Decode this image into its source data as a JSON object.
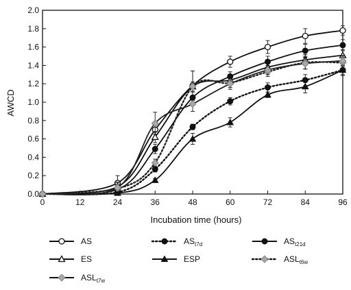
{
  "chart_data": {
    "type": "line",
    "title": "",
    "xlabel": "Incubation time (hours)",
    "ylabel": "AWCD",
    "xlim": [
      0,
      96
    ],
    "ylim": [
      0,
      2.0
    ],
    "x_ticks": [
      0,
      12,
      24,
      36,
      48,
      60,
      72,
      84,
      96
    ],
    "y_ticks": [
      "0.0",
      "0.2",
      "0.4",
      "0.6",
      "0.8",
      "1.0",
      "1.2",
      "1.4",
      "1.6",
      "1.8",
      "2.0"
    ],
    "grid": false,
    "legend_position": "bottom",
    "x": [
      0,
      24,
      36,
      48,
      60,
      72,
      84,
      96
    ],
    "series": [
      {
        "name": "AS",
        "main": "AS",
        "sub": "",
        "marker": "circle-open",
        "line": "solid",
        "values": [
          0.0,
          0.12,
          0.7,
          1.18,
          1.44,
          1.6,
          1.72,
          1.78
        ],
        "errors": [
          0,
          0.08,
          0.08,
          0.16,
          0.06,
          0.07,
          0.08,
          0.05
        ]
      },
      {
        "name": "AS_t7d",
        "main": "AS",
        "sub": "t7d",
        "marker": "circle-filled",
        "line": "dotted",
        "values": [
          0.0,
          0.02,
          0.27,
          0.73,
          1.01,
          1.16,
          1.24,
          1.35
        ],
        "errors": [
          0,
          0.02,
          0.03,
          0.03,
          0.04,
          0.05,
          0.06,
          0.05
        ]
      },
      {
        "name": "AS_t21d",
        "main": "AS",
        "sub": "t21d",
        "marker": "circle-filled",
        "line": "solid",
        "values": [
          0.0,
          0.05,
          0.49,
          1.05,
          1.28,
          1.44,
          1.56,
          1.62
        ],
        "errors": [
          0,
          0.04,
          0.05,
          0.06,
          0.05,
          0.06,
          0.07,
          0.06
        ]
      },
      {
        "name": "ES",
        "main": "ES",
        "sub": "",
        "marker": "triangle-open",
        "line": "solid",
        "values": [
          0.0,
          0.08,
          0.62,
          1.17,
          1.24,
          1.38,
          1.46,
          1.51
        ],
        "errors": [
          0,
          0.05,
          0.06,
          0.05,
          0.05,
          0.05,
          0.06,
          0.06
        ]
      },
      {
        "name": "ESP",
        "main": "ESP",
        "sub": "",
        "marker": "triangle-filled",
        "line": "solid",
        "values": [
          0.0,
          0.01,
          0.15,
          0.6,
          0.78,
          1.08,
          1.17,
          1.35
        ],
        "errors": [
          0,
          0.01,
          0.02,
          0.06,
          0.05,
          0.03,
          0.07,
          0.06
        ]
      },
      {
        "name": "ASL_t6w",
        "main": "ASL",
        "sub": "t6w",
        "marker": "diamond-gray",
        "line": "dotted",
        "values": [
          0.0,
          0.06,
          0.34,
          1.17,
          1.21,
          1.33,
          1.43,
          1.43
        ],
        "errors": [
          0,
          0.04,
          0.04,
          0.17,
          0.05,
          0.05,
          0.07,
          0.07
        ]
      },
      {
        "name": "ASL_t7w",
        "main": "ASL",
        "sub": "t7w",
        "marker": "diamond-gray",
        "line": "solid",
        "values": [
          0.0,
          0.07,
          0.77,
          0.98,
          1.2,
          1.35,
          1.42,
          1.45
        ],
        "errors": [
          0,
          0.05,
          0.12,
          0.08,
          0.06,
          0.05,
          0.06,
          0.06
        ]
      }
    ]
  }
}
